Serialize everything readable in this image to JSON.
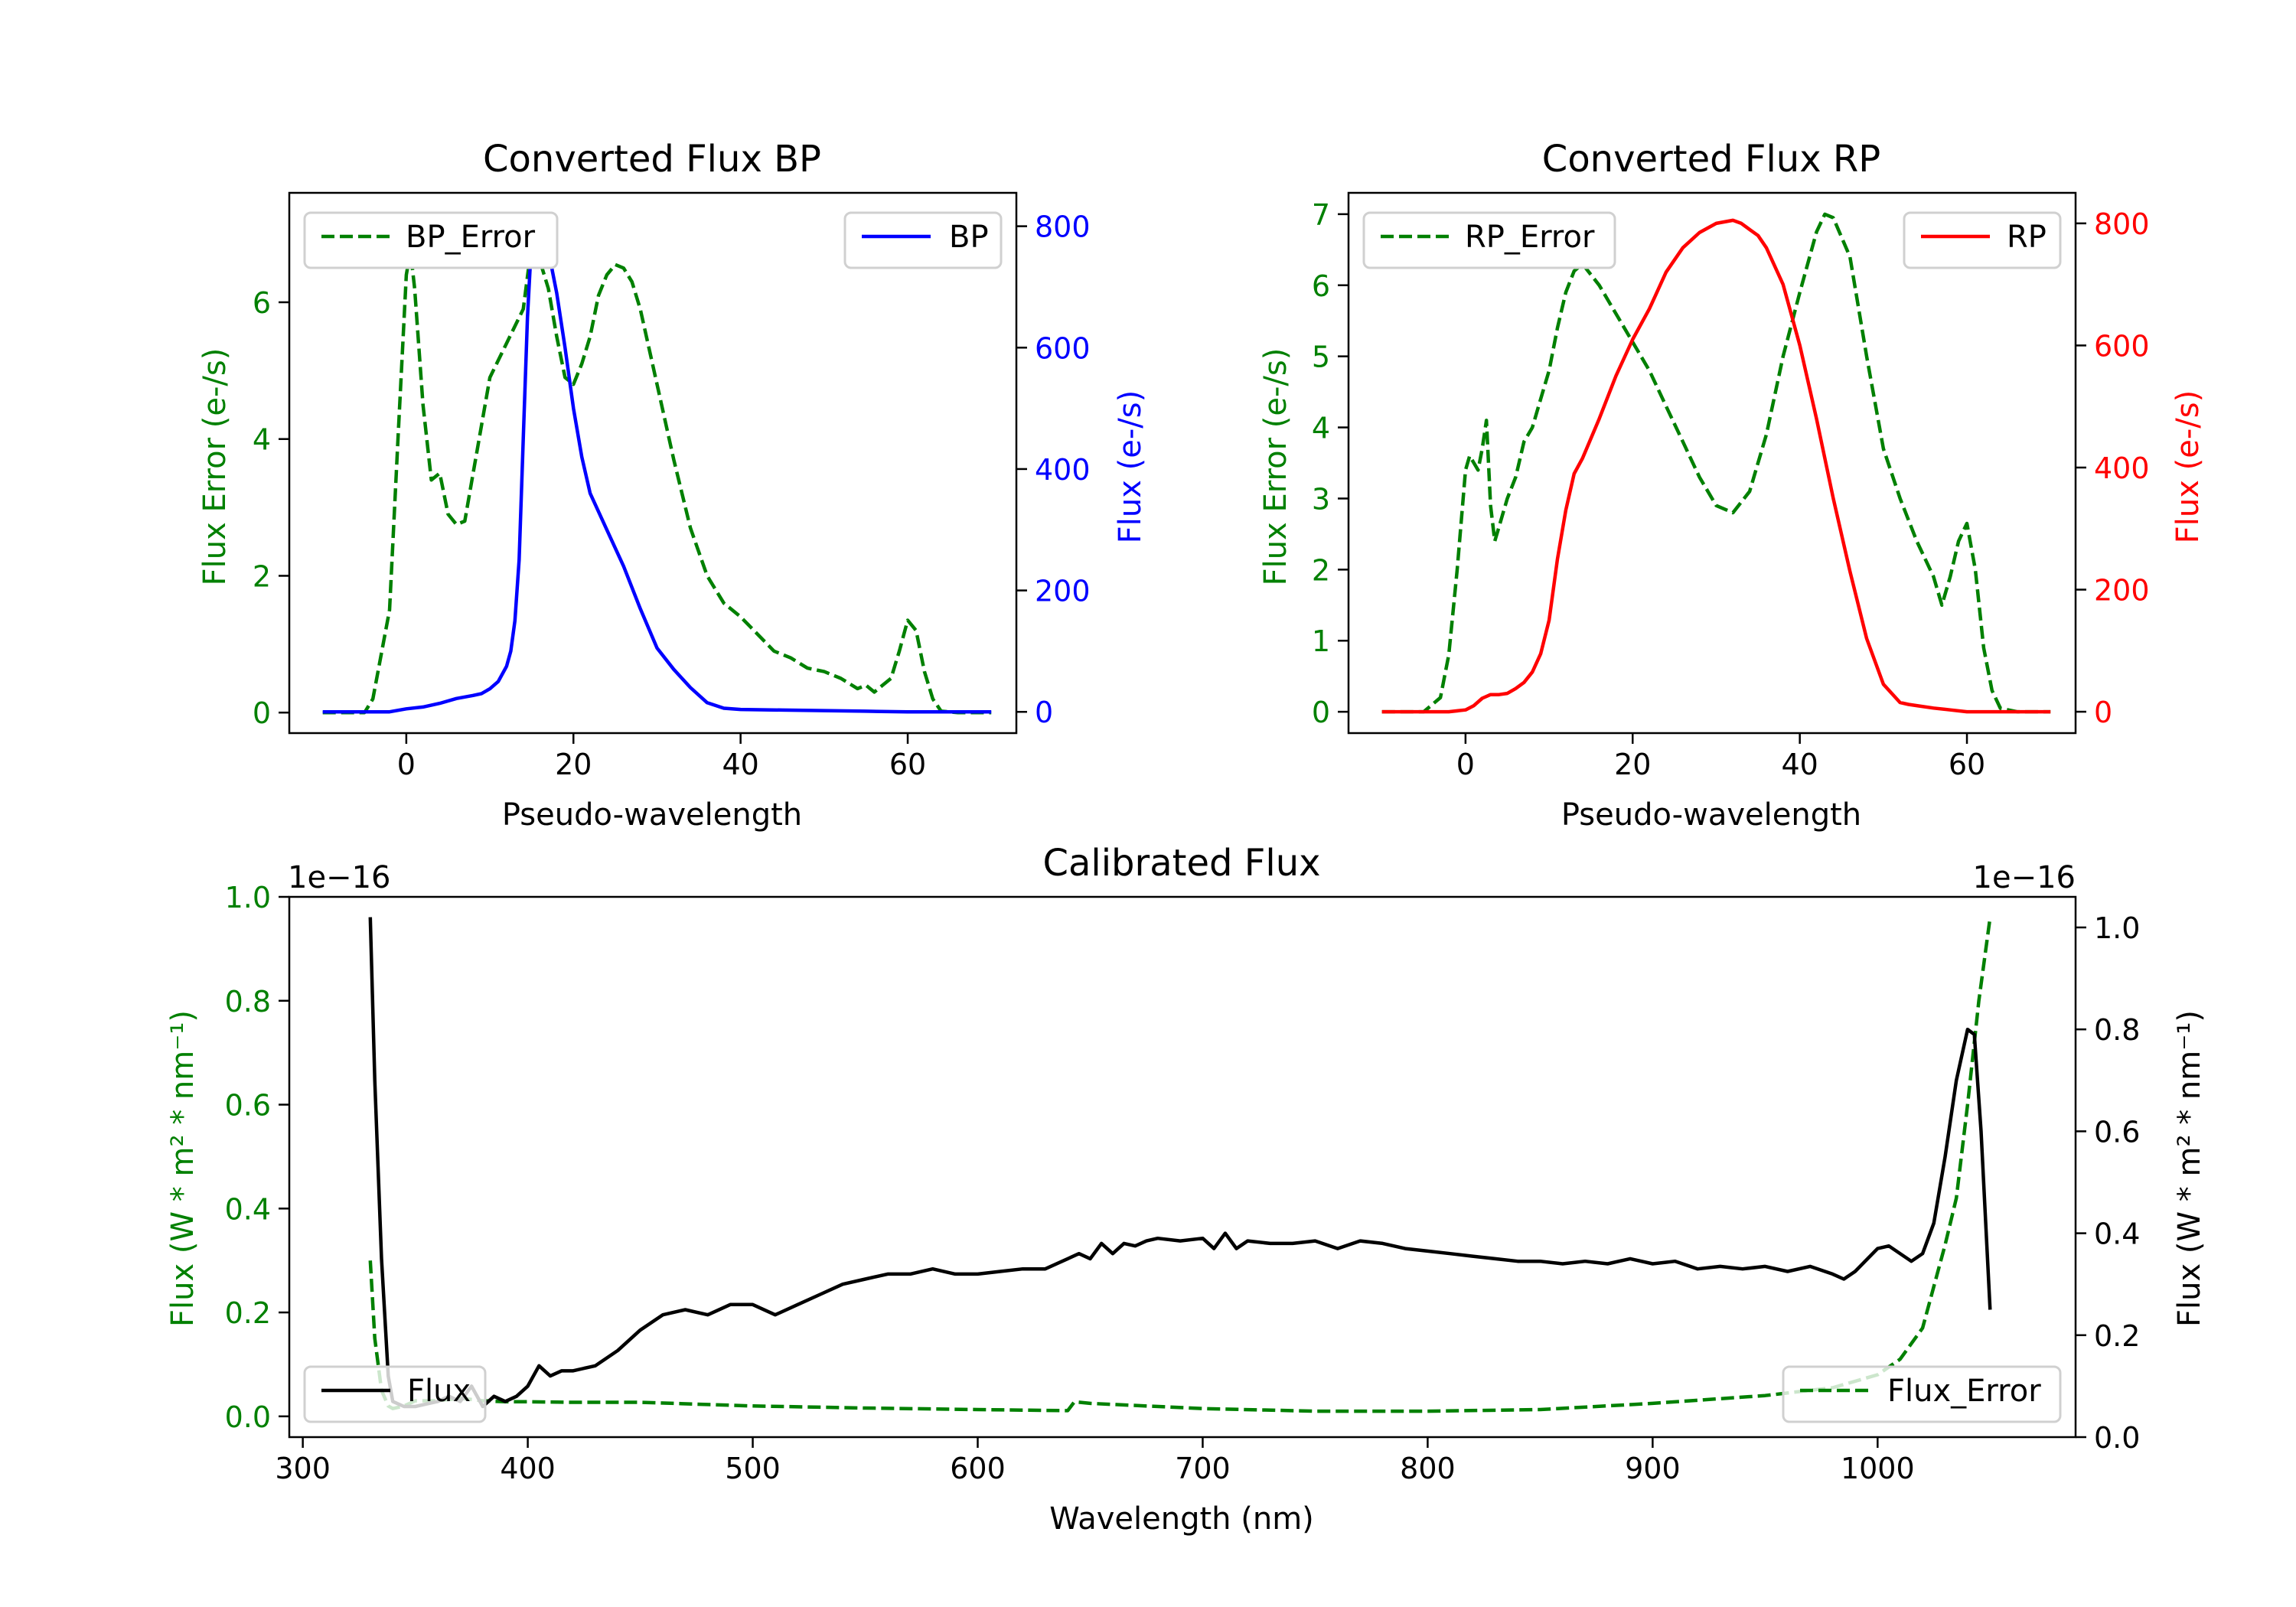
{
  "colors": {
    "green": "#008000",
    "blue": "#0000ff",
    "red": "#ff0000",
    "black": "#000000"
  },
  "chart_data": [
    {
      "id": "bp",
      "type": "line",
      "title": "Converted Flux BP",
      "xlabel": "Pseudo-wavelength",
      "ylabel_left": "Flux Error (e-/s)",
      "ylabel_right": "Flux (e-/s)",
      "xlim": [
        -14,
        73
      ],
      "ylim_left": [
        -0.3,
        7.6
      ],
      "ylim_right": [
        -35,
        855
      ],
      "x_ticks": [
        0,
        20,
        40,
        60
      ],
      "y_ticks_left": [
        0,
        2,
        4,
        6
      ],
      "y_ticks_right": [
        0,
        200,
        400,
        600,
        800
      ],
      "legend_left": "BP_Error",
      "legend_right": "BP",
      "series": [
        {
          "name": "BP_Error",
          "axis": "left",
          "color": "#008000",
          "dash": true,
          "x": [
            -10,
            -5,
            -4,
            -2,
            -1,
            0,
            0.5,
            1,
            2,
            3,
            4,
            5,
            6,
            7,
            8,
            10,
            12,
            14,
            15,
            16,
            17,
            18,
            19,
            20,
            21,
            22,
            23,
            24,
            25,
            26,
            27,
            28,
            30,
            32,
            34,
            36,
            38,
            40,
            42,
            44,
            46,
            48,
            50,
            52,
            54,
            55,
            56,
            57,
            58,
            59,
            60,
            61,
            62,
            63,
            64,
            66,
            70
          ],
          "y": [
            0,
            0,
            0.2,
            1.5,
            4,
            6.4,
            6.75,
            6.2,
            4.5,
            3.4,
            3.5,
            2.9,
            2.75,
            2.8,
            3.5,
            4.9,
            5.4,
            5.9,
            6.85,
            6.6,
            6.2,
            5.5,
            4.9,
            4.8,
            5.1,
            5.5,
            6.1,
            6.4,
            6.55,
            6.5,
            6.3,
            5.9,
            4.8,
            3.7,
            2.7,
            2.0,
            1.6,
            1.4,
            1.15,
            0.9,
            0.8,
            0.65,
            0.6,
            0.5,
            0.35,
            0.4,
            0.3,
            0.4,
            0.5,
            0.9,
            1.35,
            1.2,
            0.6,
            0.2,
            0.02,
            0,
            0
          ]
        },
        {
          "name": "BP",
          "axis": "right",
          "color": "#0000ff",
          "dash": false,
          "x": [
            -10,
            -2,
            0,
            2,
            4,
            6,
            8,
            9,
            10,
            11,
            12,
            12.5,
            13,
            13.5,
            14,
            14.5,
            15,
            15.5,
            16,
            17,
            18,
            19,
            20,
            21,
            22,
            24,
            26,
            28,
            30,
            32,
            34,
            36,
            38,
            40,
            45,
            50,
            55,
            60,
            65,
            70
          ],
          "y": [
            0,
            0,
            5,
            8,
            14,
            22,
            27,
            30,
            38,
            50,
            75,
            100,
            150,
            250,
            450,
            650,
            780,
            820,
            810,
            760,
            690,
            600,
            500,
            420,
            360,
            300,
            240,
            170,
            105,
            70,
            40,
            15,
            6,
            4,
            3,
            2,
            1,
            0,
            0,
            0
          ]
        }
      ]
    },
    {
      "id": "rp",
      "type": "line",
      "title": "Converted Flux RP",
      "xlabel": "Pseudo-wavelength",
      "ylabel_left": "Flux Error (e-/s)",
      "ylabel_right": "Flux (e-/s)",
      "xlim": [
        -14,
        73
      ],
      "ylim_left": [
        -0.3,
        7.3
      ],
      "ylim_right": [
        -35,
        850
      ],
      "x_ticks": [
        0,
        20,
        40,
        60
      ],
      "y_ticks_left": [
        0,
        1,
        2,
        3,
        4,
        5,
        6,
        7
      ],
      "y_ticks_right": [
        0,
        200,
        400,
        600,
        800
      ],
      "legend_left": "RP_Error",
      "legend_right": "RP",
      "series": [
        {
          "name": "RP_Error",
          "axis": "left",
          "color": "#008000",
          "dash": true,
          "x": [
            -10,
            -5,
            -3,
            -2,
            -1,
            0,
            0.5,
            1,
            1.5,
            2,
            2.5,
            3,
            3.5,
            4,
            5,
            6,
            7,
            8,
            9,
            10,
            11,
            12,
            13,
            14,
            16,
            18,
            20,
            22,
            24,
            26,
            28,
            30,
            32,
            34,
            36,
            38,
            40,
            42,
            43,
            44,
            46,
            48,
            50,
            52,
            54,
            56,
            57,
            58,
            59,
            60,
            61,
            62,
            63,
            64,
            66,
            70
          ],
          "y": [
            0,
            0,
            0.2,
            0.8,
            2.0,
            3.4,
            3.6,
            3.5,
            3.4,
            3.7,
            4.1,
            2.9,
            2.4,
            2.6,
            3.0,
            3.3,
            3.8,
            4.0,
            4.4,
            4.8,
            5.4,
            5.9,
            6.2,
            6.3,
            6.0,
            5.6,
            5.2,
            4.8,
            4.3,
            3.8,
            3.3,
            2.9,
            2.8,
            3.1,
            3.9,
            5.0,
            5.9,
            6.75,
            7.0,
            6.95,
            6.4,
            5.0,
            3.7,
            3.0,
            2.4,
            1.9,
            1.5,
            1.9,
            2.4,
            2.65,
            2.0,
            0.9,
            0.3,
            0.05,
            0,
            0
          ]
        },
        {
          "name": "RP",
          "axis": "right",
          "color": "#ff0000",
          "dash": false,
          "x": [
            -10,
            -2,
            0,
            1,
            2,
            3,
            4,
            5,
            6,
            7,
            8,
            9,
            10,
            11,
            12,
            13,
            14,
            16,
            18,
            20,
            22,
            24,
            26,
            28,
            30,
            32,
            33,
            34,
            35,
            36,
            38,
            40,
            42,
            44,
            46,
            48,
            50,
            52,
            53,
            54,
            56,
            58,
            60,
            62,
            65,
            70
          ],
          "y": [
            0,
            0,
            3,
            10,
            22,
            28,
            28,
            30,
            38,
            48,
            65,
            95,
            150,
            250,
            330,
            390,
            415,
            480,
            550,
            610,
            660,
            720,
            760,
            785,
            800,
            805,
            800,
            790,
            780,
            760,
            700,
            600,
            480,
            350,
            230,
            120,
            45,
            15,
            12,
            10,
            6,
            3,
            0,
            0,
            0,
            0
          ]
        }
      ]
    },
    {
      "id": "calibrated",
      "type": "line",
      "title": "Calibrated Flux",
      "xlabel": "Wavelength (nm)",
      "ylabel_left": "Flux (W * m² * nm⁻¹)",
      "ylabel_right": "Flux (W * m² * nm⁻¹)",
      "offset_left": "1e−16",
      "offset_right": "1e−16",
      "xlim": [
        294,
        1088
      ],
      "ylim_left": [
        -0.04,
        1.0
      ],
      "ylim_right": [
        0,
        1.06
      ],
      "x_ticks": [
        300,
        400,
        500,
        600,
        700,
        800,
        900,
        1000
      ],
      "y_ticks_left": [
        "0.0",
        "0.2",
        "0.4",
        "0.6",
        "0.8",
        "1.0"
      ],
      "y_ticks_right": [
        "0.0",
        "0.2",
        "0.4",
        "0.6",
        "0.8",
        "1.0"
      ],
      "legend_left": "Flux",
      "legend_right": "Flux_Error",
      "series": [
        {
          "name": "Flux_Error",
          "axis": "left",
          "color": "#008000",
          "dash": true,
          "x": [
            330,
            332,
            335,
            338,
            340,
            345,
            350,
            360,
            370,
            380,
            390,
            400,
            420,
            450,
            500,
            550,
            600,
            640,
            643,
            650,
            700,
            750,
            800,
            850,
            900,
            950,
            980,
            1000,
            1010,
            1020,
            1025,
            1030,
            1035,
            1040,
            1045,
            1050
          ],
          "y": [
            0.3,
            0.15,
            0.05,
            0.02,
            0.015,
            0.02,
            0.03,
            0.03,
            0.035,
            0.03,
            0.028,
            0.028,
            0.027,
            0.027,
            0.02,
            0.016,
            0.013,
            0.011,
            0.028,
            0.025,
            0.015,
            0.01,
            0.01,
            0.013,
            0.025,
            0.04,
            0.055,
            0.08,
            0.11,
            0.17,
            0.25,
            0.33,
            0.42,
            0.6,
            0.8,
            0.96
          ]
        },
        {
          "name": "Flux",
          "axis": "right",
          "color": "#000000",
          "dash": false,
          "x": [
            330,
            332,
            335,
            338,
            340,
            345,
            350,
            355,
            360,
            365,
            370,
            375,
            380,
            385,
            390,
            395,
            400,
            405,
            410,
            415,
            420,
            430,
            440,
            450,
            460,
            470,
            480,
            490,
            500,
            510,
            520,
            530,
            540,
            550,
            560,
            570,
            580,
            590,
            600,
            610,
            620,
            630,
            640,
            645,
            650,
            655,
            660,
            665,
            670,
            675,
            680,
            690,
            700,
            705,
            710,
            715,
            720,
            730,
            740,
            750,
            760,
            770,
            780,
            790,
            800,
            810,
            820,
            830,
            840,
            850,
            860,
            870,
            880,
            890,
            900,
            910,
            920,
            930,
            940,
            950,
            960,
            970,
            980,
            985,
            990,
            1000,
            1005,
            1010,
            1015,
            1020,
            1025,
            1030,
            1035,
            1040,
            1043,
            1046,
            1050
          ],
          "y": [
            1.02,
            0.7,
            0.35,
            0.12,
            0.07,
            0.06,
            0.06,
            0.065,
            0.07,
            0.08,
            0.07,
            0.1,
            0.06,
            0.08,
            0.07,
            0.08,
            0.1,
            0.14,
            0.12,
            0.13,
            0.13,
            0.14,
            0.17,
            0.21,
            0.24,
            0.25,
            0.24,
            0.26,
            0.26,
            0.24,
            0.26,
            0.28,
            0.3,
            0.31,
            0.32,
            0.32,
            0.33,
            0.32,
            0.32,
            0.325,
            0.33,
            0.33,
            0.35,
            0.36,
            0.35,
            0.38,
            0.36,
            0.38,
            0.375,
            0.385,
            0.39,
            0.385,
            0.39,
            0.37,
            0.4,
            0.37,
            0.385,
            0.38,
            0.38,
            0.385,
            0.37,
            0.385,
            0.38,
            0.37,
            0.365,
            0.36,
            0.355,
            0.35,
            0.345,
            0.345,
            0.34,
            0.345,
            0.34,
            0.35,
            0.34,
            0.345,
            0.33,
            0.335,
            0.33,
            0.335,
            0.325,
            0.335,
            0.32,
            0.31,
            0.325,
            0.37,
            0.375,
            0.36,
            0.345,
            0.36,
            0.42,
            0.55,
            0.7,
            0.8,
            0.79,
            0.6,
            0.25
          ]
        }
      ]
    }
  ]
}
